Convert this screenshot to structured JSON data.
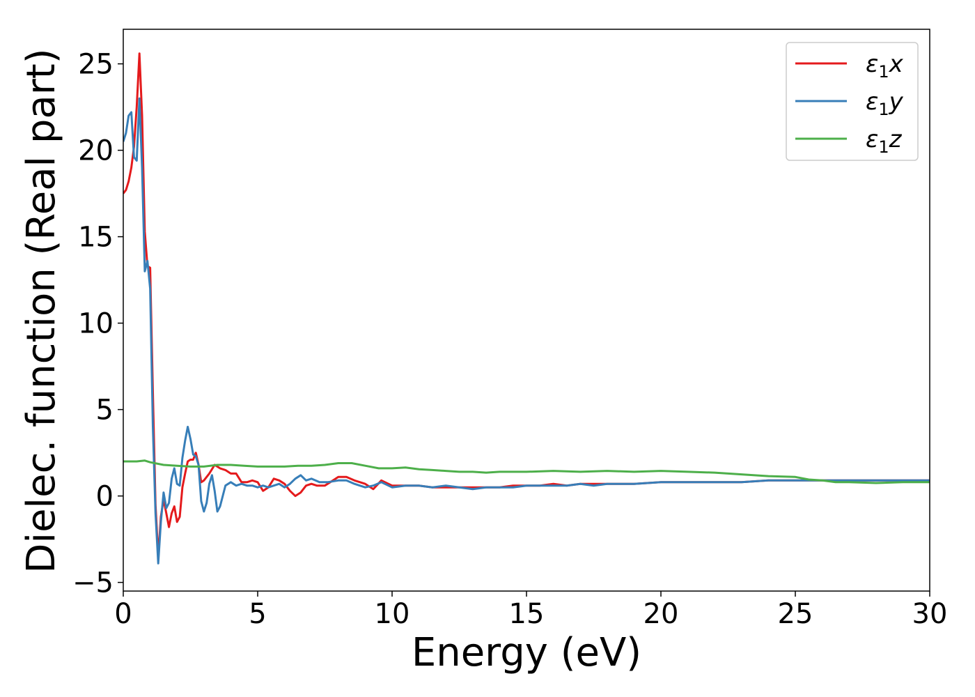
{
  "chart_data": {
    "type": "line",
    "title": "",
    "xlabel": "Energy (eV)",
    "ylabel": "Dielec. function (Real part)",
    "xlim": [
      0,
      30
    ],
    "ylim": [
      -5.5,
      27
    ],
    "x_ticks": [
      "0",
      "5",
      "10",
      "15",
      "20",
      "25",
      "30"
    ],
    "y_ticks": [
      "−5",
      "0",
      "5",
      "10",
      "15",
      "20",
      "25"
    ],
    "x_tick_values": [
      0,
      5,
      10,
      15,
      20,
      25,
      30
    ],
    "y_tick_values": [
      -5,
      0,
      5,
      10,
      15,
      20,
      25
    ],
    "grid": false,
    "legend_position": "top-right",
    "series": [
      {
        "name": "ε₁x",
        "legend_base": "ε",
        "legend_sub": "1",
        "legend_var": "x",
        "color": "#e41a1c",
        "points": [
          [
            0,
            17.5
          ],
          [
            0.1,
            17.7
          ],
          [
            0.2,
            18.2
          ],
          [
            0.3,
            19.0
          ],
          [
            0.4,
            20.2
          ],
          [
            0.5,
            22.5
          ],
          [
            0.6,
            25.6
          ],
          [
            0.7,
            22.0
          ],
          [
            0.8,
            15.3
          ],
          [
            0.9,
            13.3
          ],
          [
            1.0,
            13.2
          ],
          [
            1.1,
            6.0
          ],
          [
            1.2,
            -0.5
          ],
          [
            1.3,
            -3.5
          ],
          [
            1.4,
            -1.2
          ],
          [
            1.5,
            -0.2
          ],
          [
            1.6,
            -1.0
          ],
          [
            1.7,
            -1.8
          ],
          [
            1.8,
            -1.0
          ],
          [
            1.9,
            -0.6
          ],
          [
            2.0,
            -1.5
          ],
          [
            2.1,
            -1.2
          ],
          [
            2.2,
            0.5
          ],
          [
            2.3,
            1.3
          ],
          [
            2.4,
            2.0
          ],
          [
            2.5,
            2.1
          ],
          [
            2.6,
            2.1
          ],
          [
            2.7,
            2.5
          ],
          [
            2.8,
            1.8
          ],
          [
            2.9,
            0.8
          ],
          [
            3.0,
            0.9
          ],
          [
            3.2,
            1.3
          ],
          [
            3.4,
            1.8
          ],
          [
            3.6,
            1.6
          ],
          [
            3.8,
            1.5
          ],
          [
            4.0,
            1.3
          ],
          [
            4.2,
            1.3
          ],
          [
            4.4,
            0.8
          ],
          [
            4.6,
            0.8
          ],
          [
            4.8,
            0.9
          ],
          [
            5.0,
            0.8
          ],
          [
            5.2,
            0.3
          ],
          [
            5.4,
            0.5
          ],
          [
            5.6,
            1.0
          ],
          [
            5.8,
            0.9
          ],
          [
            6.0,
            0.7
          ],
          [
            6.2,
            0.3
          ],
          [
            6.4,
            0.0
          ],
          [
            6.6,
            0.2
          ],
          [
            6.8,
            0.6
          ],
          [
            7.0,
            0.7
          ],
          [
            7.2,
            0.6
          ],
          [
            7.5,
            0.6
          ],
          [
            7.8,
            0.9
          ],
          [
            8.0,
            1.1
          ],
          [
            8.3,
            1.1
          ],
          [
            8.6,
            0.9
          ],
          [
            9.0,
            0.7
          ],
          [
            9.3,
            0.4
          ],
          [
            9.6,
            0.9
          ],
          [
            10.0,
            0.6
          ],
          [
            10.5,
            0.6
          ],
          [
            11.0,
            0.6
          ],
          [
            11.5,
            0.5
          ],
          [
            12.0,
            0.5
          ],
          [
            12.5,
            0.5
          ],
          [
            13.0,
            0.5
          ],
          [
            13.5,
            0.5
          ],
          [
            14.0,
            0.5
          ],
          [
            14.5,
            0.6
          ],
          [
            15.0,
            0.6
          ],
          [
            15.5,
            0.6
          ],
          [
            16.0,
            0.7
          ],
          [
            16.5,
            0.6
          ],
          [
            17.0,
            0.7
          ],
          [
            17.5,
            0.7
          ],
          [
            18.0,
            0.7
          ],
          [
            19.0,
            0.7
          ],
          [
            20.0,
            0.8
          ],
          [
            21.0,
            0.8
          ],
          [
            22.0,
            0.8
          ],
          [
            23.0,
            0.8
          ],
          [
            24.0,
            0.9
          ],
          [
            25.0,
            0.9
          ],
          [
            26.0,
            0.9
          ],
          [
            27.0,
            0.9
          ],
          [
            28.0,
            0.9
          ],
          [
            29.0,
            0.9
          ],
          [
            30.0,
            0.9
          ]
        ]
      },
      {
        "name": "ε₁y",
        "legend_base": "ε",
        "legend_sub": "1",
        "legend_var": "y",
        "color": "#377eb8",
        "points": [
          [
            0,
            20.5
          ],
          [
            0.1,
            21.0
          ],
          [
            0.2,
            22.0
          ],
          [
            0.3,
            22.2
          ],
          [
            0.4,
            19.6
          ],
          [
            0.5,
            19.4
          ],
          [
            0.6,
            23.0
          ],
          [
            0.7,
            19.0
          ],
          [
            0.8,
            13.0
          ],
          [
            0.9,
            13.6
          ],
          [
            1.0,
            12.0
          ],
          [
            1.1,
            4.0
          ],
          [
            1.2,
            -1.0
          ],
          [
            1.3,
            -3.9
          ],
          [
            1.4,
            -1.5
          ],
          [
            1.5,
            0.2
          ],
          [
            1.6,
            -0.7
          ],
          [
            1.7,
            -0.4
          ],
          [
            1.8,
            1.0
          ],
          [
            1.9,
            1.6
          ],
          [
            2.0,
            0.7
          ],
          [
            2.1,
            0.6
          ],
          [
            2.2,
            2.2
          ],
          [
            2.3,
            3.2
          ],
          [
            2.4,
            4.0
          ],
          [
            2.5,
            3.3
          ],
          [
            2.6,
            2.4
          ],
          [
            2.7,
            2.3
          ],
          [
            2.8,
            1.8
          ],
          [
            2.9,
            -0.3
          ],
          [
            3.0,
            -0.9
          ],
          [
            3.1,
            -0.4
          ],
          [
            3.2,
            0.7
          ],
          [
            3.3,
            1.2
          ],
          [
            3.4,
            0.3
          ],
          [
            3.5,
            -0.9
          ],
          [
            3.6,
            -0.6
          ],
          [
            3.8,
            0.6
          ],
          [
            4.0,
            0.8
          ],
          [
            4.2,
            0.6
          ],
          [
            4.4,
            0.7
          ],
          [
            4.6,
            0.6
          ],
          [
            4.8,
            0.6
          ],
          [
            5.0,
            0.5
          ],
          [
            5.2,
            0.6
          ],
          [
            5.4,
            0.5
          ],
          [
            5.6,
            0.6
          ],
          [
            5.8,
            0.7
          ],
          [
            6.0,
            0.5
          ],
          [
            6.2,
            0.7
          ],
          [
            6.4,
            1.0
          ],
          [
            6.6,
            1.2
          ],
          [
            6.8,
            0.9
          ],
          [
            7.0,
            1.0
          ],
          [
            7.3,
            0.8
          ],
          [
            7.6,
            0.8
          ],
          [
            8.0,
            0.9
          ],
          [
            8.3,
            0.9
          ],
          [
            8.6,
            0.7
          ],
          [
            9.0,
            0.5
          ],
          [
            9.3,
            0.6
          ],
          [
            9.6,
            0.8
          ],
          [
            10.0,
            0.5
          ],
          [
            10.5,
            0.6
          ],
          [
            11.0,
            0.6
          ],
          [
            11.5,
            0.5
          ],
          [
            12.0,
            0.6
          ],
          [
            12.5,
            0.5
          ],
          [
            13.0,
            0.4
          ],
          [
            13.5,
            0.5
          ],
          [
            14.0,
            0.5
          ],
          [
            14.5,
            0.5
          ],
          [
            15.0,
            0.6
          ],
          [
            15.5,
            0.6
          ],
          [
            16.0,
            0.6
          ],
          [
            16.5,
            0.6
          ],
          [
            17.0,
            0.7
          ],
          [
            17.5,
            0.6
          ],
          [
            18.0,
            0.7
          ],
          [
            19.0,
            0.7
          ],
          [
            20.0,
            0.8
          ],
          [
            21.0,
            0.8
          ],
          [
            22.0,
            0.8
          ],
          [
            23.0,
            0.8
          ],
          [
            24.0,
            0.9
          ],
          [
            25.0,
            0.9
          ],
          [
            26.0,
            0.9
          ],
          [
            27.0,
            0.9
          ],
          [
            28.0,
            0.9
          ],
          [
            29.0,
            0.9
          ],
          [
            30.0,
            0.9
          ]
        ]
      },
      {
        "name": "ε₁z",
        "legend_base": "ε",
        "legend_sub": "1",
        "legend_var": "z",
        "color": "#4daf4a",
        "points": [
          [
            0,
            2.0
          ],
          [
            0.5,
            2.0
          ],
          [
            0.8,
            2.05
          ],
          [
            1.0,
            1.95
          ],
          [
            1.5,
            1.8
          ],
          [
            2.0,
            1.75
          ],
          [
            2.5,
            1.7
          ],
          [
            3.0,
            1.7
          ],
          [
            3.5,
            1.8
          ],
          [
            4.0,
            1.8
          ],
          [
            4.5,
            1.75
          ],
          [
            5.0,
            1.7
          ],
          [
            5.5,
            1.7
          ],
          [
            6.0,
            1.7
          ],
          [
            6.5,
            1.75
          ],
          [
            7.0,
            1.75
          ],
          [
            7.5,
            1.8
          ],
          [
            8.0,
            1.9
          ],
          [
            8.5,
            1.9
          ],
          [
            9.0,
            1.75
          ],
          [
            9.5,
            1.6
          ],
          [
            10.0,
            1.6
          ],
          [
            10.5,
            1.65
          ],
          [
            11.0,
            1.55
          ],
          [
            11.5,
            1.5
          ],
          [
            12.0,
            1.45
          ],
          [
            12.5,
            1.4
          ],
          [
            13.0,
            1.4
          ],
          [
            13.5,
            1.35
          ],
          [
            14.0,
            1.4
          ],
          [
            15.0,
            1.4
          ],
          [
            16.0,
            1.45
          ],
          [
            17.0,
            1.4
          ],
          [
            18.0,
            1.45
          ],
          [
            19.0,
            1.4
          ],
          [
            20.0,
            1.45
          ],
          [
            21.0,
            1.4
          ],
          [
            22.0,
            1.35
          ],
          [
            23.0,
            1.25
          ],
          [
            24.0,
            1.15
          ],
          [
            25.0,
            1.1
          ],
          [
            25.5,
            0.95
          ],
          [
            26.0,
            0.9
          ],
          [
            26.5,
            0.8
          ],
          [
            27.0,
            0.8
          ],
          [
            28.0,
            0.75
          ],
          [
            29.0,
            0.8
          ],
          [
            30.0,
            0.8
          ]
        ]
      }
    ]
  }
}
